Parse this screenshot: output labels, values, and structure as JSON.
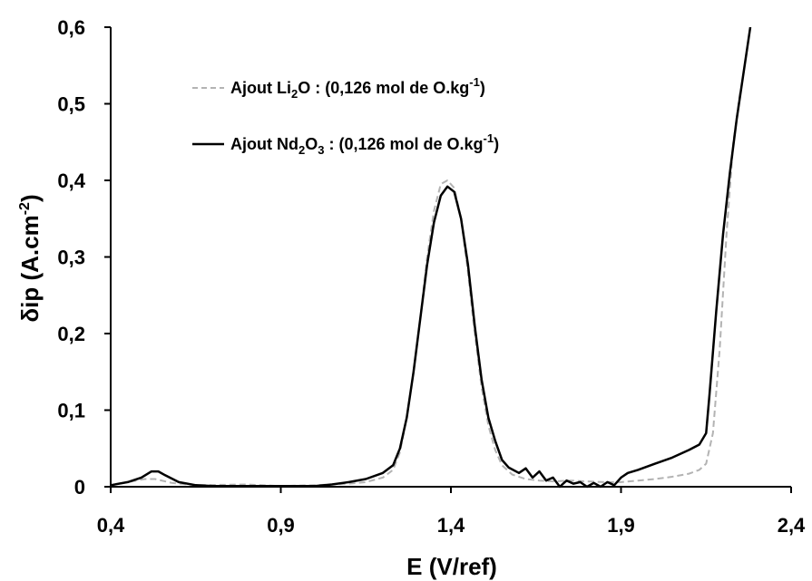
{
  "chart_data": {
    "type": "line",
    "title": "",
    "xlabel": "E (V/ref)",
    "ylabel_parts": {
      "main": "δip (A.cm",
      "sup": "-2",
      "tail": ")"
    },
    "xlim": [
      0.4,
      2.4
    ],
    "ylim": [
      0,
      0.6
    ],
    "xticks": [
      0.4,
      0.9,
      1.4,
      1.9,
      2.4
    ],
    "xtick_labels": [
      "0,4",
      "0,9",
      "1,4",
      "1,9",
      "2,4"
    ],
    "yticks": [
      0,
      0.1,
      0.2,
      0.3,
      0.4,
      0.5,
      0.6
    ],
    "ytick_labels": [
      "0",
      "0,1",
      "0,2",
      "0,3",
      "0,4",
      "0,5",
      "0,6"
    ],
    "grid": false,
    "legend_position": "top-center",
    "series": [
      {
        "name": "Ajout Li2O : (0,126 mol de O.kg-1)",
        "legend_parts": {
          "a": "Ajout Li",
          "sub": "2",
          "b": "O : (0,126 mol de O.kg",
          "sup": "-1",
          "c": ")"
        },
        "color": "#b3b3b3",
        "style": "dashed",
        "x": [
          0.4,
          0.45,
          0.5,
          0.53,
          0.58,
          0.65,
          0.8,
          0.9,
          1.0,
          1.1,
          1.15,
          1.2,
          1.23,
          1.25,
          1.27,
          1.29,
          1.31,
          1.33,
          1.35,
          1.37,
          1.39,
          1.41,
          1.43,
          1.45,
          1.47,
          1.49,
          1.51,
          1.53,
          1.55,
          1.58,
          1.62,
          1.66,
          1.7,
          1.75,
          1.8,
          1.85,
          1.9,
          1.95,
          2.0,
          2.05,
          2.1,
          2.13,
          2.15,
          2.17,
          2.19,
          2.21,
          2.23,
          2.25
        ],
        "y": [
          0.002,
          0.006,
          0.01,
          0.01,
          0.005,
          0.002,
          0.003,
          0.001,
          0.002,
          0.004,
          0.006,
          0.012,
          0.022,
          0.045,
          0.09,
          0.15,
          0.22,
          0.3,
          0.36,
          0.395,
          0.4,
          0.39,
          0.35,
          0.28,
          0.2,
          0.13,
          0.08,
          0.048,
          0.028,
          0.016,
          0.01,
          0.008,
          0.007,
          0.008,
          0.007,
          0.006,
          0.006,
          0.008,
          0.01,
          0.013,
          0.017,
          0.022,
          0.03,
          0.07,
          0.18,
          0.33,
          0.45,
          0.515
        ]
      },
      {
        "name": "Ajout Nd2O3 : (0,126 mol de O.kg-1)",
        "legend_parts": {
          "a": "Ajout Nd",
          "sub": "2",
          "b": "O",
          "sub2": "3",
          "c": " : (0,126 mol de O.kg",
          "sup": "-1",
          "d": ")"
        },
        "color": "#000000",
        "style": "solid",
        "x": [
          0.4,
          0.45,
          0.49,
          0.52,
          0.54,
          0.56,
          0.6,
          0.65,
          0.7,
          0.8,
          0.9,
          1.0,
          1.05,
          1.1,
          1.15,
          1.2,
          1.23,
          1.25,
          1.27,
          1.29,
          1.31,
          1.33,
          1.35,
          1.37,
          1.39,
          1.41,
          1.43,
          1.45,
          1.47,
          1.49,
          1.51,
          1.53,
          1.55,
          1.57,
          1.6,
          1.62,
          1.64,
          1.66,
          1.68,
          1.7,
          1.72,
          1.74,
          1.76,
          1.78,
          1.8,
          1.82,
          1.84,
          1.86,
          1.88,
          1.9,
          1.92,
          1.95,
          2.0,
          2.05,
          2.1,
          2.13,
          2.15,
          2.16,
          2.18,
          2.2,
          2.22,
          2.24,
          2.26,
          2.28
        ],
        "y": [
          0.002,
          0.006,
          0.012,
          0.02,
          0.02,
          0.015,
          0.006,
          0.002,
          0.001,
          0.001,
          0.001,
          0.001,
          0.003,
          0.006,
          0.01,
          0.018,
          0.028,
          0.05,
          0.09,
          0.15,
          0.22,
          0.29,
          0.345,
          0.38,
          0.392,
          0.385,
          0.35,
          0.29,
          0.21,
          0.14,
          0.09,
          0.06,
          0.035,
          0.025,
          0.018,
          0.024,
          0.012,
          0.02,
          0.008,
          0.012,
          -0.003,
          0.008,
          0.004,
          0.006,
          -0.002,
          0.005,
          -0.002,
          0.006,
          0.002,
          0.012,
          0.018,
          0.022,
          0.03,
          0.038,
          0.048,
          0.055,
          0.07,
          0.12,
          0.23,
          0.33,
          0.41,
          0.48,
          0.54,
          0.6
        ]
      }
    ]
  }
}
